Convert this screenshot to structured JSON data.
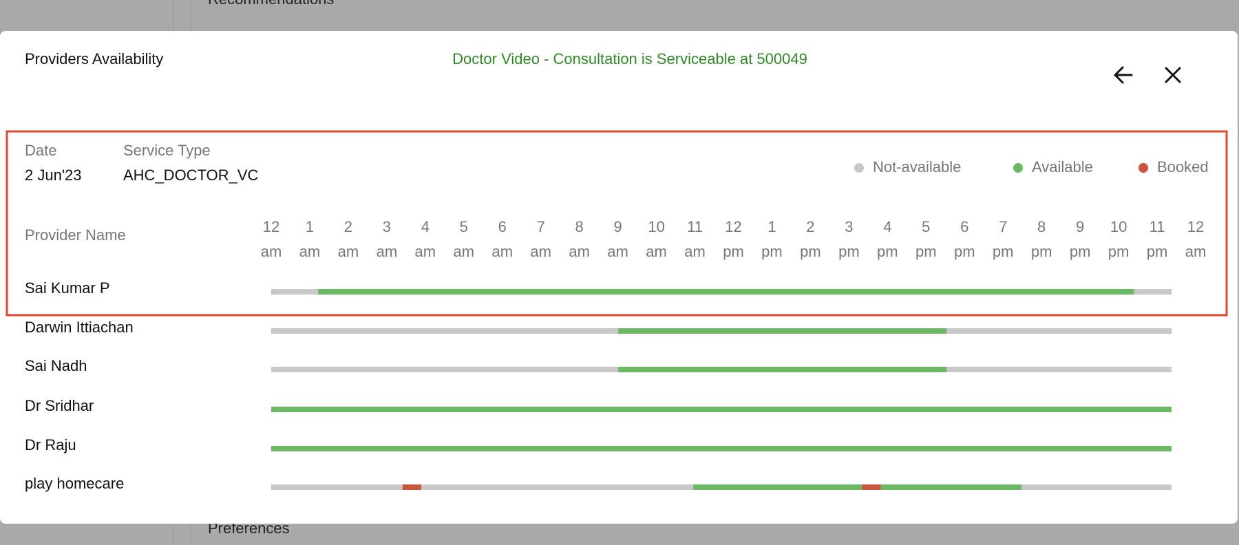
{
  "background": {
    "top_section": "Recommendations",
    "bottom_section": "Preferences"
  },
  "header": {
    "title": "Providers Availability",
    "message": "Doctor Video - Consultation is Serviceable at 500049"
  },
  "filters": {
    "date_label": "Date",
    "date": "2 Jun'23",
    "service_type_label": "Service Type",
    "service_type": "AHC_DOCTOR_VC"
  },
  "legend": {
    "not_available": {
      "label": "Not-available",
      "color": "#c8c8c8"
    },
    "available": {
      "label": "Available",
      "color": "#6db865"
    },
    "booked": {
      "label": "Booked",
      "color": "#c9553f"
    }
  },
  "time_axis": {
    "label": "Provider Name",
    "range": [
      0,
      24
    ],
    "ticks": [
      {
        "value": 0,
        "hour": "12",
        "period": "am"
      },
      {
        "value": 1,
        "hour": "1",
        "period": "am"
      },
      {
        "value": 2,
        "hour": "2",
        "period": "am"
      },
      {
        "value": 3,
        "hour": "3",
        "period": "am"
      },
      {
        "value": 4,
        "hour": "4",
        "period": "am"
      },
      {
        "value": 5,
        "hour": "5",
        "period": "am"
      },
      {
        "value": 6,
        "hour": "6",
        "period": "am"
      },
      {
        "value": 7,
        "hour": "7",
        "period": "am"
      },
      {
        "value": 8,
        "hour": "8",
        "period": "am"
      },
      {
        "value": 9,
        "hour": "9",
        "period": "am"
      },
      {
        "value": 10,
        "hour": "10",
        "period": "am"
      },
      {
        "value": 11,
        "hour": "11",
        "period": "am"
      },
      {
        "value": 12,
        "hour": "12",
        "period": "pm"
      },
      {
        "value": 13,
        "hour": "1",
        "period": "pm"
      },
      {
        "value": 14,
        "hour": "2",
        "period": "pm"
      },
      {
        "value": 15,
        "hour": "3",
        "period": "pm"
      },
      {
        "value": 16,
        "hour": "4",
        "period": "pm"
      },
      {
        "value": 17,
        "hour": "5",
        "period": "pm"
      },
      {
        "value": 18,
        "hour": "6",
        "period": "pm"
      },
      {
        "value": 19,
        "hour": "7",
        "period": "pm"
      },
      {
        "value": 20,
        "hour": "8",
        "period": "pm"
      },
      {
        "value": 21,
        "hour": "9",
        "period": "pm"
      },
      {
        "value": 22,
        "hour": "10",
        "period": "pm"
      },
      {
        "value": 23,
        "hour": "11",
        "period": "pm"
      },
      {
        "value": 24,
        "hour": "12",
        "period": "am"
      }
    ]
  },
  "providers": [
    {
      "name": "Sai Kumar P",
      "not_available": [
        [
          0,
          1.25
        ],
        [
          23,
          24
        ]
      ],
      "available": [
        [
          1.25,
          23
        ]
      ],
      "booked": []
    },
    {
      "name": "Darwin Ittiachan",
      "not_available": [
        [
          0,
          9.25
        ],
        [
          18,
          24
        ]
      ],
      "available": [
        [
          9.25,
          18
        ]
      ],
      "booked": []
    },
    {
      "name": "Sai Nadh",
      "not_available": [
        [
          0,
          9.25
        ],
        [
          18,
          24
        ]
      ],
      "available": [
        [
          9.25,
          18
        ]
      ],
      "booked": []
    },
    {
      "name": "Dr Sridhar",
      "not_available": [],
      "available": [
        [
          0,
          24
        ]
      ],
      "booked": []
    },
    {
      "name": "Dr Raju",
      "not_available": [],
      "available": [
        [
          0,
          24
        ]
      ],
      "booked": []
    },
    {
      "name": "play homecare",
      "not_available": [
        [
          0,
          3.5
        ],
        [
          4,
          11.25
        ],
        [
          20,
          24
        ]
      ],
      "available": [
        [
          11.25,
          15.75
        ],
        [
          16.25,
          20
        ]
      ],
      "booked": [
        [
          3.5,
          4
        ],
        [
          15.75,
          16.25
        ]
      ]
    }
  ]
}
